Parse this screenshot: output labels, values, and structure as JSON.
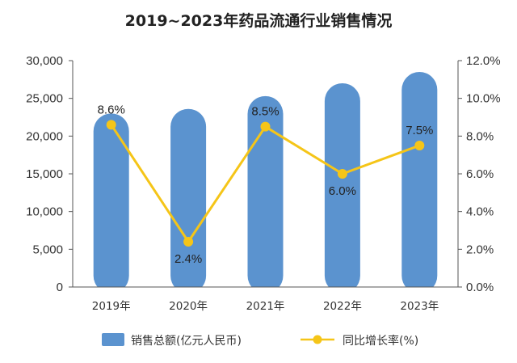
{
  "chart_data": {
    "type": "bar",
    "title": "2019~2023年药品流通行业销售情况",
    "categories": [
      "2019年",
      "2020年",
      "2021年",
      "2022年",
      "2023年"
    ],
    "series": [
      {
        "name": "销售总额(亿元人民币)",
        "type": "bar",
        "axis": "left",
        "color": "#5b93cf",
        "values": [
          23000,
          23600,
          25300,
          27000,
          28500
        ]
      },
      {
        "name": "同比增长率(%)",
        "type": "line",
        "axis": "right",
        "color": "#f5c518",
        "values": [
          8.6,
          2.4,
          8.5,
          6.0,
          7.5
        ],
        "labels": [
          "8.6%",
          "2.4%",
          "8.5%",
          "6.0%",
          "7.5%"
        ]
      }
    ],
    "y_left": {
      "min": 0,
      "max": 30000,
      "ticks": [
        "0",
        "5,000",
        "10,000",
        "15,000",
        "20,000",
        "25,000",
        "30,000"
      ]
    },
    "y_right": {
      "min": 0,
      "max": 12,
      "ticks": [
        "0.0%",
        "2.0%",
        "4.0%",
        "6.0%",
        "8.0%",
        "10.0%",
        "12.0%"
      ]
    },
    "grid": false,
    "legend_position": "bottom"
  }
}
